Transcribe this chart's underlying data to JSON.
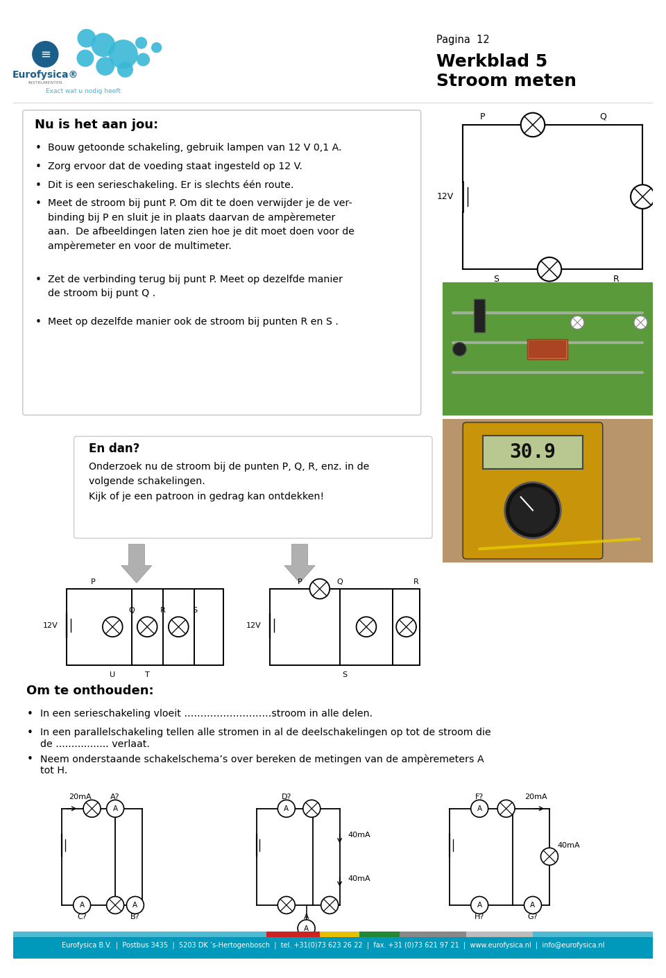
{
  "page_num": "Pagina  12",
  "title_line1": "Werkblad 5",
  "title_line2": "Stroom meten",
  "logo_text": "Eurofysica®",
  "logo_sub": "INSTRUMENTEN",
  "logo_tagline": "Exact wat u nodig heeft",
  "section1_header": "Nu is het aan jou:",
  "section2_header": "En dan?",
  "section2_text1": "Onderzoek nu de stroom bij de punten P, Q, R, enz. in de",
  "section2_text2": "volgende schakelingen.",
  "section2_text3": "Kijk of je een patroon in gedrag kan ontdekken!",
  "section3_header": "Om te onthouden:",
  "s3b1": "In een serieschakeling vloeit ………………………stroom in alle delen.",
  "s3b2a": "In een parallelschakeling tellen alle stromen in al de deelschakelingen op tot de stroom die",
  "s3b2b": "de ................. verlaat.",
  "s3b3a": "Neem onderstaande schakelschema’s over bereken de metingen van de ampèremeters A",
  "s3b3b": "tot H.",
  "footer_text": "Eurofysica B.V.  |  Postbus 3435  |  5203 DK ’s-Hertogenbosch  |  tel. +31(0)73 623 26 22  |  fax. +31 (0)73 621 97 21  |  www.eurofysica.nl  |  info@eurofysica.nl",
  "bg_color": "#ffffff",
  "footer_bg": "#0099bb",
  "arrow_color": "#bbbbbb",
  "bar_colors": [
    "#4db8d4",
    "#cc3333",
    "#e8b800",
    "#339944",
    "#999999",
    "#cccccc",
    "#4db8d4",
    "#4db8d4",
    "#4db8d4"
  ]
}
